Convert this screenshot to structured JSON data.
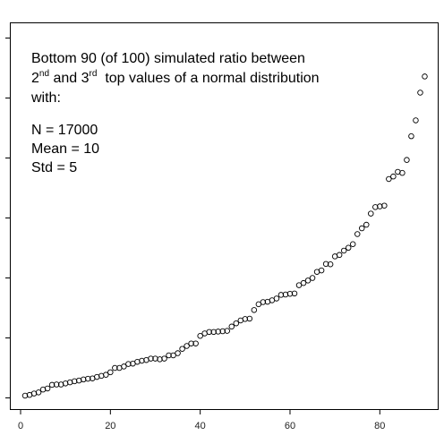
{
  "chart_data": {
    "type": "scatter",
    "title": "",
    "xlabel": "",
    "ylabel": "",
    "xlim": [
      0,
      91.5
    ],
    "ylim": [
      0,
      1
    ],
    "xticks": [
      0,
      20,
      40,
      60,
      80
    ],
    "ytick_count": 7,
    "grid": false,
    "legend": "none",
    "marker": "open-circle",
    "annotation": {
      "line1": "Bottom 90 (of 100) simulated ratio between",
      "line2_a": "2",
      "line2_sup1": "nd",
      "line2_b": " and 3",
      "line2_sup2": "rd",
      "line2_c": "  top values of a normal distribution",
      "line3": "with:",
      "line4": "N = 17000",
      "line5": "Mean = 10",
      "line6": "Std = 5"
    },
    "series": [
      {
        "x": [
          1,
          2,
          3,
          4,
          5,
          6,
          7,
          8,
          9,
          10,
          11,
          12,
          13,
          14,
          15,
          16,
          17,
          18,
          19,
          20,
          21,
          22,
          23,
          24,
          25,
          26,
          27,
          28,
          29,
          30,
          31,
          32,
          33,
          34,
          35,
          36,
          37,
          38,
          39,
          40,
          41,
          42,
          43,
          44,
          45,
          46,
          47,
          48,
          49,
          50,
          51,
          52,
          53,
          54,
          55,
          56,
          57,
          58,
          59,
          60,
          61,
          62,
          63,
          64,
          65,
          66,
          67,
          68,
          69,
          70,
          71,
          72,
          73,
          74,
          75,
          76,
          77,
          78,
          79,
          80,
          81,
          82,
          83,
          84,
          85,
          86,
          87,
          88,
          89,
          90
        ],
        "y": [
          0.005,
          0.007,
          0.011,
          0.014,
          0.022,
          0.025,
          0.035,
          0.036,
          0.036,
          0.039,
          0.042,
          0.045,
          0.047,
          0.05,
          0.052,
          0.053,
          0.057,
          0.06,
          0.063,
          0.07,
          0.082,
          0.082,
          0.086,
          0.093,
          0.094,
          0.099,
          0.102,
          0.104,
          0.108,
          0.108,
          0.106,
          0.108,
          0.117,
          0.117,
          0.123,
          0.135,
          0.143,
          0.15,
          0.15,
          0.171,
          0.178,
          0.182,
          0.182,
          0.183,
          0.184,
          0.185,
          0.197,
          0.206,
          0.214,
          0.218,
          0.219,
          0.243,
          0.259,
          0.265,
          0.266,
          0.27,
          0.275,
          0.285,
          0.286,
          0.288,
          0.289,
          0.312,
          0.318,
          0.325,
          0.332,
          0.349,
          0.353,
          0.371,
          0.37,
          0.392,
          0.396,
          0.408,
          0.416,
          0.426,
          0.454,
          0.47,
          0.48,
          0.511,
          0.529,
          0.531,
          0.533,
          0.607,
          0.614,
          0.627,
          0.624,
          0.66,
          0.726,
          0.77,
          0.847,
          0.892
        ]
      }
    ]
  }
}
